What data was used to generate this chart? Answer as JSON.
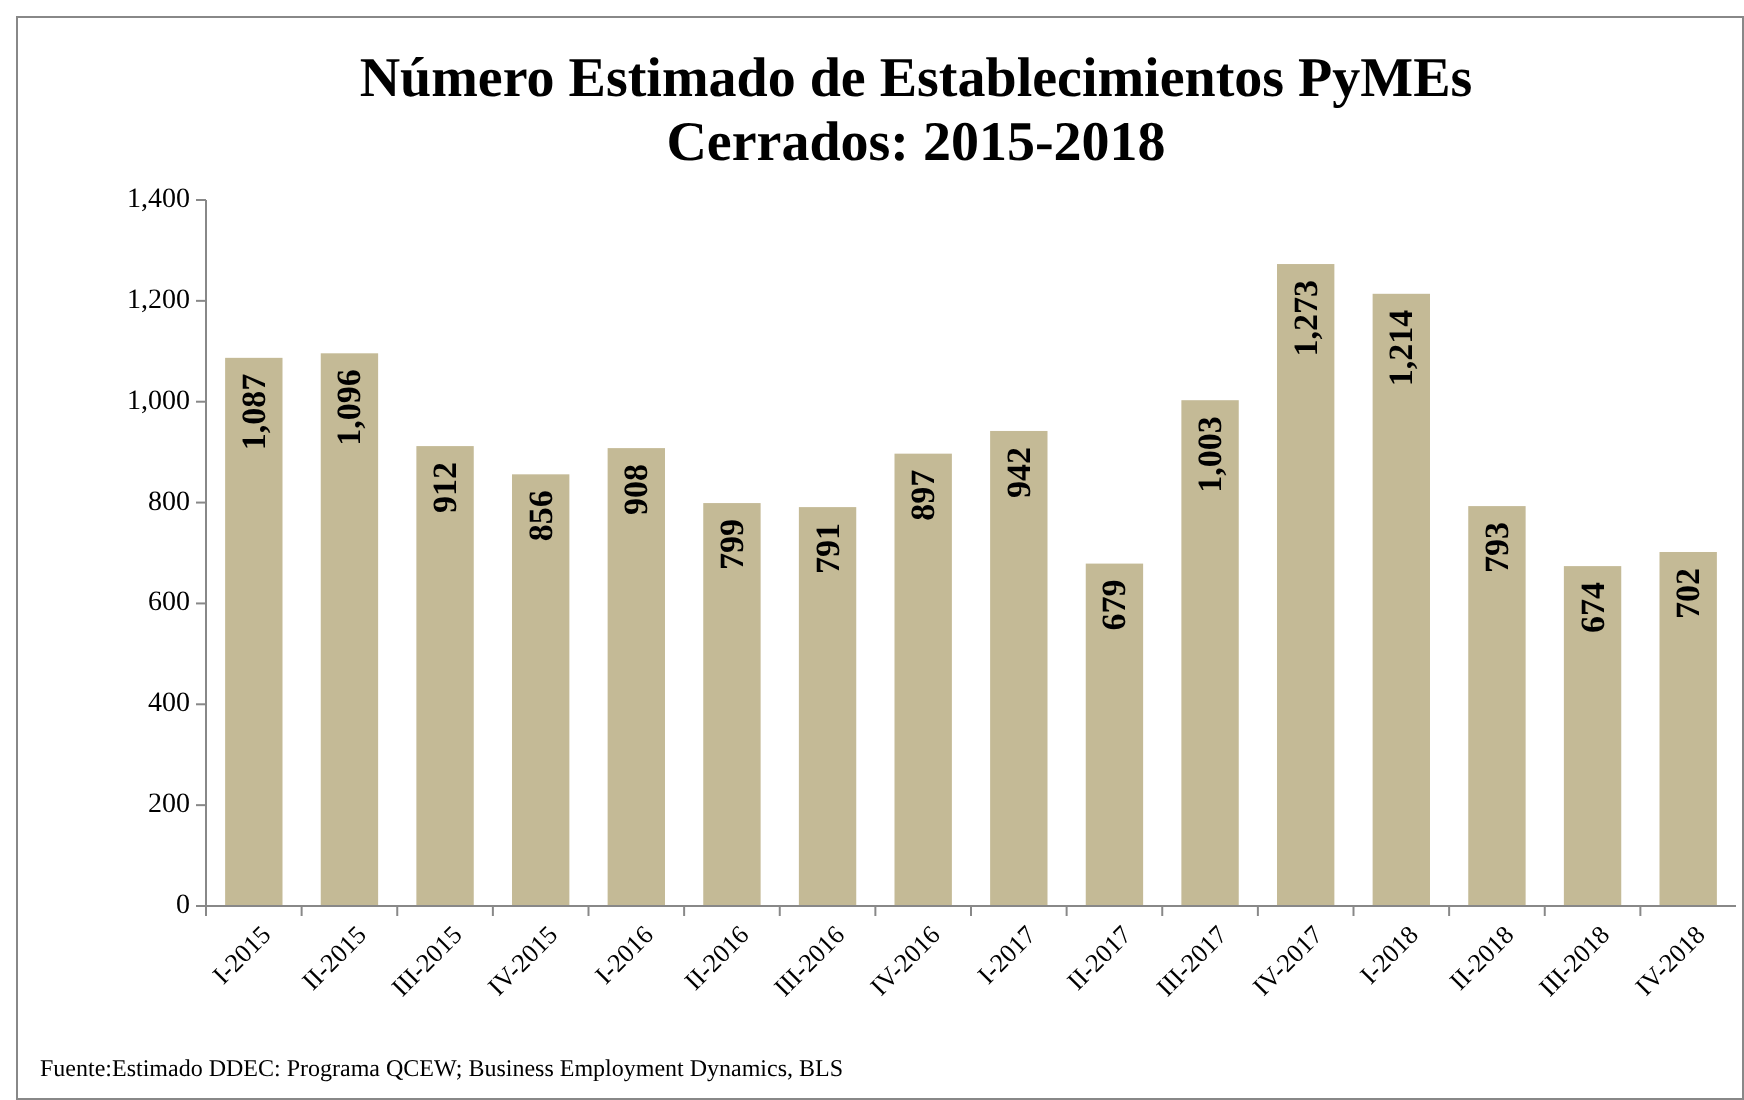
{
  "chart_data": {
    "type": "bar",
    "title": "Número Estimado de Establecimientos PyMEs\nCerrados: 2015-2018",
    "categories": [
      "I-2015",
      "II-2015",
      "III-2015",
      "IV-2015",
      "I-2016",
      "II-2016",
      "III-2016",
      "IV-2016",
      "I-2017",
      "II-2017",
      "III-2017",
      "IV-2017",
      "I-2018",
      "II-2018",
      "III-2018",
      "IV-2018"
    ],
    "values": [
      1087,
      1096,
      912,
      856,
      908,
      799,
      791,
      897,
      942,
      679,
      1003,
      1273,
      1214,
      793,
      674,
      702
    ],
    "value_labels": [
      "1,087",
      "1,096",
      "912",
      "856",
      "908",
      "799",
      "791",
      "897",
      "942",
      "679",
      "1,003",
      "1,273",
      "1,214",
      "793",
      "674",
      "702"
    ],
    "color": "#c4ba96",
    "ylim": [
      0,
      1400
    ],
    "yticks": [
      {
        "value": 0,
        "label": "0"
      },
      {
        "value": 200,
        "label": "200"
      },
      {
        "value": 400,
        "label": "400"
      },
      {
        "value": 600,
        "label": "600"
      },
      {
        "value": 800,
        "label": "800"
      },
      {
        "value": 1000,
        "label": "1,000"
      },
      {
        "value": 1200,
        "label": "1,200"
      },
      {
        "value": 1400,
        "label": "1,400"
      }
    ],
    "annotations": [
      "Fuente:Estimado DDEC: Programa QCEW; Business Employment Dynamics, BLS"
    ]
  }
}
